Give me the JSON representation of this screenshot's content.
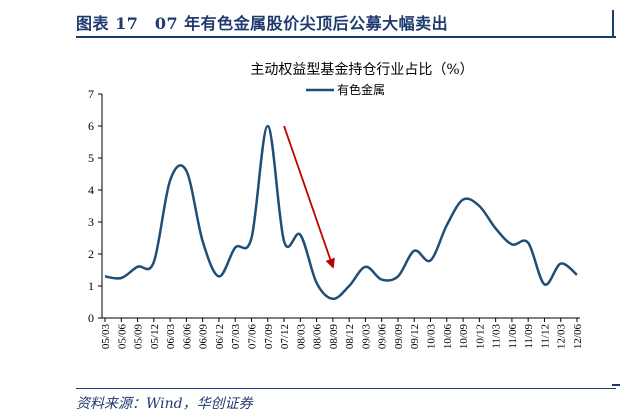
{
  "header": {
    "figure_title": "图表 17　07 年有色金属股价尖顶后公募大幅卖出"
  },
  "footer": {
    "source": "资料来源：Wind，华创证券"
  },
  "chart_data": {
    "type": "line",
    "title": "主动权益型基金持仓行业占比（%）",
    "xlabel": "",
    "ylabel": "",
    "ylim": [
      0,
      7
    ],
    "yticks": [
      "0",
      "1",
      "2",
      "3",
      "4",
      "5",
      "6",
      "7"
    ],
    "legend_position": "top-center",
    "grid": false,
    "x": [
      "05/03",
      "05/06",
      "05/09",
      "05/12",
      "06/03",
      "06/06",
      "06/09",
      "06/12",
      "07/03",
      "07/06",
      "07/09",
      "07/12",
      "08/03",
      "08/06",
      "08/09",
      "08/12",
      "09/03",
      "09/06",
      "09/09",
      "09/12",
      "10/03",
      "10/06",
      "10/09",
      "10/12",
      "11/03",
      "11/06",
      "11/09",
      "11/12",
      "12/03",
      "12/06"
    ],
    "series": [
      {
        "name": "有色金属",
        "color": "#1f4e79",
        "values": [
          1.3,
          1.25,
          1.6,
          1.75,
          4.3,
          4.6,
          2.4,
          1.3,
          2.2,
          2.5,
          6.0,
          2.4,
          2.6,
          1.1,
          0.6,
          1.0,
          1.6,
          1.2,
          1.3,
          2.1,
          1.8,
          2.9,
          3.7,
          3.5,
          2.8,
          2.3,
          2.35,
          1.05,
          1.7,
          1.35
        ]
      }
    ],
    "annotations": [
      {
        "type": "arrow",
        "color": "#c00000",
        "from": {
          "x": "07/12",
          "y": 6.0
        },
        "to": {
          "x": "08/09",
          "y": 1.6
        }
      }
    ]
  }
}
